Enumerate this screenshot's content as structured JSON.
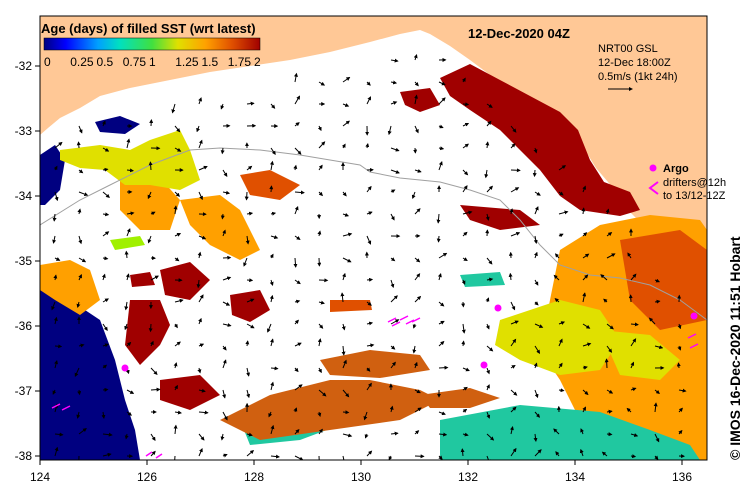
{
  "title": "12-Dec-2020 04Z",
  "colorbar": {
    "title": "Age (days) of filled SST (wrt latest)",
    "ticks": [
      "0",
      "0.25",
      "0.5",
      "0.75",
      "1",
      "1.25",
      "1.5",
      "1.75",
      "2"
    ]
  },
  "current_info": {
    "line1": "NRT00 GSL",
    "line2": "12-Dec 18:00Z",
    "line3": "0.5m/s (1kt 24h)"
  },
  "legend": {
    "argo": "Argo",
    "drifters": "drifters@12h",
    "drifters_to": "to 13/12-12Z"
  },
  "credit": "© IMOS 16-Dec-2020 11:51 Hobart",
  "x_ticks": [
    "124",
    "126",
    "128",
    "130",
    "132",
    "134",
    "136"
  ],
  "y_ticks": [
    "-32",
    "-33",
    "-34",
    "-35",
    "-36",
    "-37",
    "-38"
  ],
  "colors": {
    "land": "#ffc896",
    "ocean": "#ffffff",
    "age_0": "#000080",
    "age_05": "#00bfff",
    "age_1": "#66e033",
    "age_125": "#e0e000",
    "age_15": "#ffa000",
    "age_175": "#e05000",
    "age_2": "#a00000",
    "argo": "#ff00ff"
  }
}
